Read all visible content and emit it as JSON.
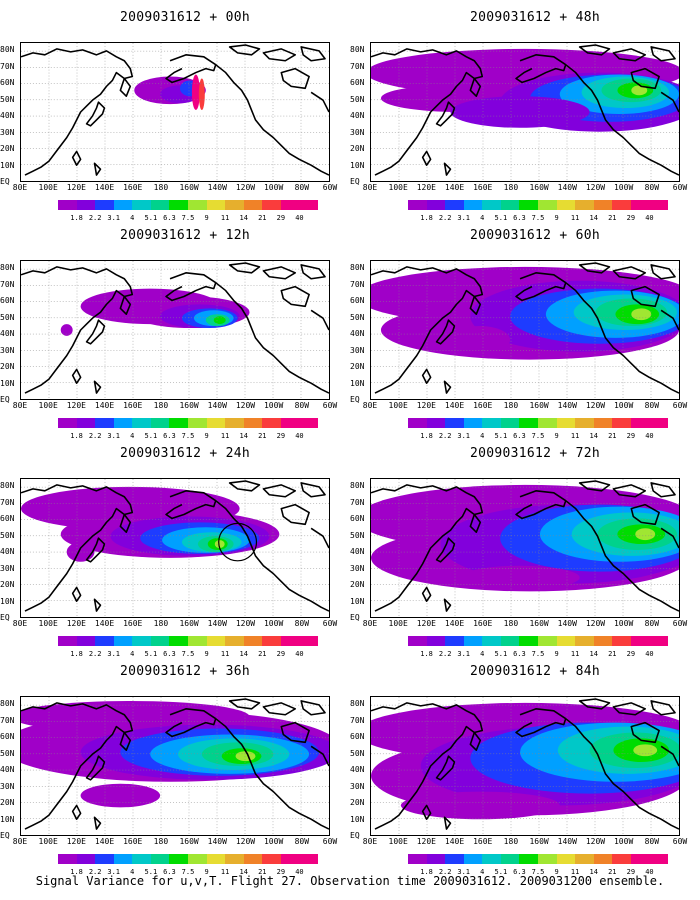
{
  "caption": "Signal Variance for u,v,T. Flight 27. Observation time 2009031612. 2009031200 ensemble.",
  "axes": {
    "lat_labels": [
      "80N",
      "70N",
      "60N",
      "50N",
      "40N",
      "30N",
      "20N",
      "10N",
      "EQ"
    ],
    "lon_labels": [
      "80E",
      "100E",
      "120E",
      "140E",
      "160E",
      "180",
      "160W",
      "140W",
      "120W",
      "100W",
      "80W",
      "60W"
    ]
  },
  "colorbar": {
    "labels": [
      "1.8",
      "2.2",
      "3.1",
      "4",
      "5.1",
      "6.3",
      "7.5",
      "9",
      "11",
      "14",
      "21",
      "29",
      "40"
    ],
    "colors": [
      "#a000c8",
      "#8200dc",
      "#1e3cff",
      "#00a0ff",
      "#00c8c8",
      "#00d28c",
      "#00dc00",
      "#a0e632",
      "#e6dc32",
      "#e6af2d",
      "#f08228",
      "#fa3c3c",
      "#f00082"
    ]
  },
  "panels": [
    {
      "title": "2009031612 + 00h"
    },
    {
      "title": "2009031612 + 12h"
    },
    {
      "title": "2009031612 + 24h"
    },
    {
      "title": "2009031612 + 36h"
    },
    {
      "title": "2009031612 + 48h"
    },
    {
      "title": "2009031612 + 60h"
    },
    {
      "title": "2009031612 + 72h"
    },
    {
      "title": "2009031612 + 84h"
    }
  ]
}
